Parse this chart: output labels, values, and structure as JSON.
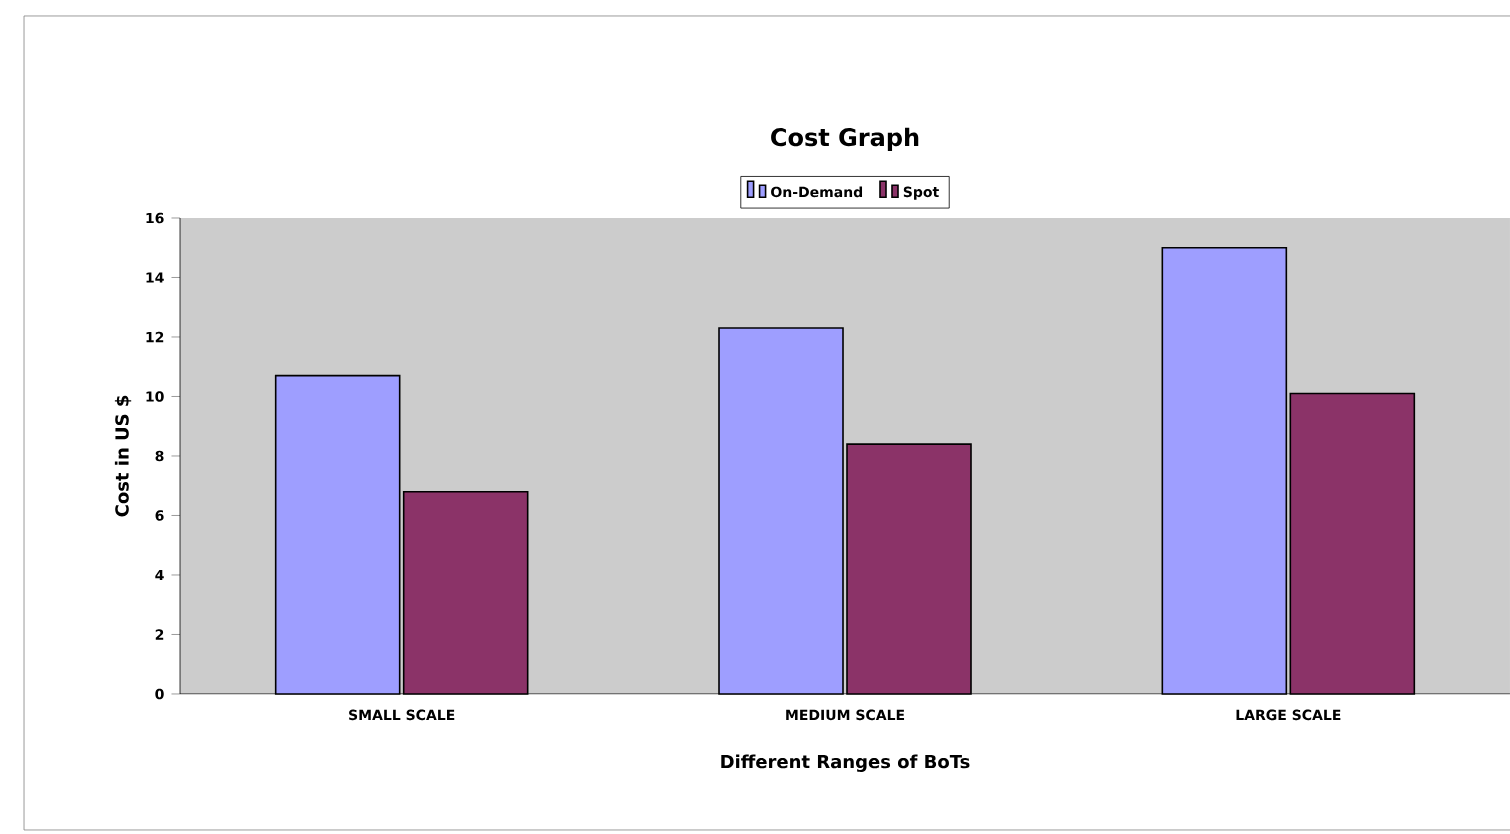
{
  "chart_data": {
    "type": "bar",
    "title": "Cost Graph",
    "xlabel": "Different Ranges of BoTs",
    "ylabel": "Cost in US $",
    "categories": [
      "SMALL SCALE",
      "MEDIUM SCALE",
      "LARGE SCALE"
    ],
    "series": [
      {
        "name": "On-Demand",
        "color": "#9e9eff",
        "values": [
          10.7,
          12.3,
          15.0
        ]
      },
      {
        "name": "Spot",
        "color": "#8b3368",
        "values": [
          6.8,
          8.4,
          10.1
        ]
      }
    ],
    "ylim": [
      0,
      16
    ],
    "yticks": [
      0,
      2,
      4,
      6,
      8,
      10,
      12,
      14,
      16
    ],
    "legend": "top",
    "grid": false
  }
}
